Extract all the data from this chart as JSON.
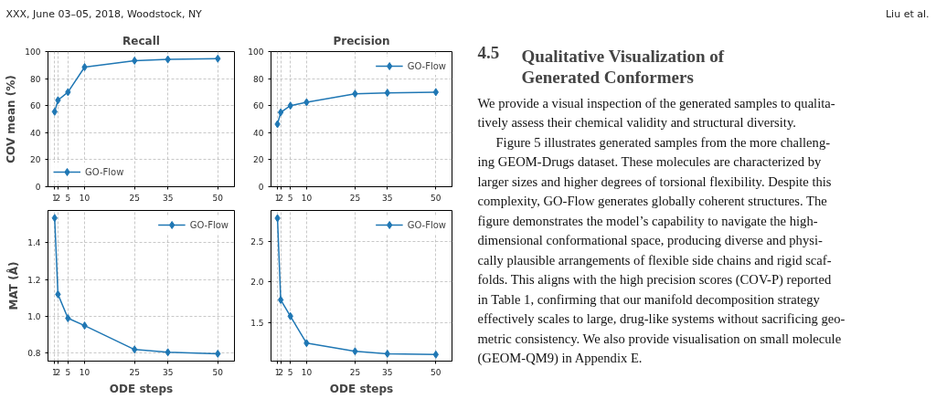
{
  "chart_data": [
    {
      "type": "other",
      "annotations": [
        "XXX, June 03–05, 2018, Woodstock, NY",
        "Liu et al."
      ]
    },
    {
      "type": "line",
      "title": "Recall",
      "ylabel": "COV mean (%)",
      "x": [
        1,
        2,
        5,
        10,
        25,
        35,
        50
      ],
      "xlim": [
        -1,
        55
      ],
      "xticks": [
        1,
        2,
        5,
        10,
        25,
        35,
        50
      ],
      "ylim": [
        0,
        100
      ],
      "yticks": [
        0,
        20,
        40,
        60,
        80,
        100
      ],
      "grid": true,
      "legend": "bottom left",
      "marker": "diamond",
      "series": [
        {
          "name": "GO-Flow",
          "color": "#1f77b4",
          "values": [
            55.5,
            64,
            70,
            88.5,
            93.3,
            94.2,
            94.8
          ]
        }
      ]
    },
    {
      "type": "line",
      "title": "Precision",
      "x": [
        1,
        2,
        5,
        10,
        25,
        35,
        50
      ],
      "xlim": [
        -1,
        55
      ],
      "xticks": [
        1,
        2,
        5,
        10,
        25,
        35,
        50
      ],
      "ylim": [
        0,
        100
      ],
      "yticks": [
        0,
        20,
        40,
        60,
        80,
        100
      ],
      "grid": true,
      "legend": "top right",
      "marker": "diamond",
      "series": [
        {
          "name": "GO-Flow",
          "color": "#1f77b4",
          "values": [
            46.3,
            55,
            60,
            62.5,
            68.8,
            69.5,
            70
          ]
        }
      ]
    },
    {
      "type": "line",
      "ylabel": "MAT (Å)",
      "xlabel": "ODE steps",
      "x": [
        1,
        2,
        5,
        10,
        25,
        35,
        50
      ],
      "xlim": [
        -1,
        55
      ],
      "xticks": [
        1,
        2,
        5,
        10,
        25,
        35,
        50
      ],
      "ylim": [
        0.757,
        1.576
      ],
      "yticks": [
        {
          "value": 0.8,
          "label": "0.8"
        },
        {
          "value": 1.0,
          "label": "1.0"
        },
        {
          "value": 1.2,
          "label": "1.2"
        },
        {
          "value": 1.4,
          "label": "1.4"
        }
      ],
      "grid": true,
      "legend": "top right",
      "marker": "diamond",
      "series": [
        {
          "name": "GO-Flow",
          "color": "#1f77b4",
          "values": [
            1.535,
            1.12,
            0.99,
            0.95,
            0.82,
            0.805,
            0.797
          ]
        }
      ]
    },
    {
      "type": "line",
      "xlabel": "ODE steps",
      "x": [
        1,
        2,
        5,
        10,
        25,
        35,
        50
      ],
      "xlim": [
        -1,
        55
      ],
      "xticks": [
        1,
        2,
        5,
        10,
        25,
        35,
        50
      ],
      "ylim": [
        1.03,
        2.875
      ],
      "yticks": [
        1.5,
        {
          "value": 2.0,
          "label": "2.0"
        },
        2.5
      ],
      "grid": true,
      "legend": "top right",
      "marker": "diamond",
      "series": [
        {
          "name": "GO-Flow",
          "color": "#1f77b4",
          "values": [
            2.78,
            1.78,
            1.58,
            1.25,
            1.15,
            1.12,
            1.11
          ]
        }
      ]
    },
    {
      "type": "other",
      "title": "4.5 Qualitative Visualization of Generated Conformers",
      "annotations": [
        "We provide a visual inspection of the generated samples to qualita-",
        "tively assess their chemical validity and structural diversity.",
        "Figure 5 illustrates generated samples from the more challeng-",
        "ing GEOM-Drugs dataset. These molecules are characterized by",
        "larger sizes and higher degrees of torsional flexibility. Despite this",
        "complexity, GO-Flow generates globally coherent structures. The",
        "figure demonstrates the model’s capability to navigate the high-",
        "dimensional conformational space, producing diverse and physi-",
        "cally plausible arrangements of flexible side chains and rigid scaf-",
        "folds. This aligns with the high precision scores (COV-P) reported",
        "in Table 1, confirming that our manifold decomposition strategy",
        "effectively scales to large, drug-like systems without sacrificing geo-",
        "metric consistency. We also provide visualisation on small molecule",
        "(GEOM-QM9) in Appendix E."
      ]
    }
  ]
}
